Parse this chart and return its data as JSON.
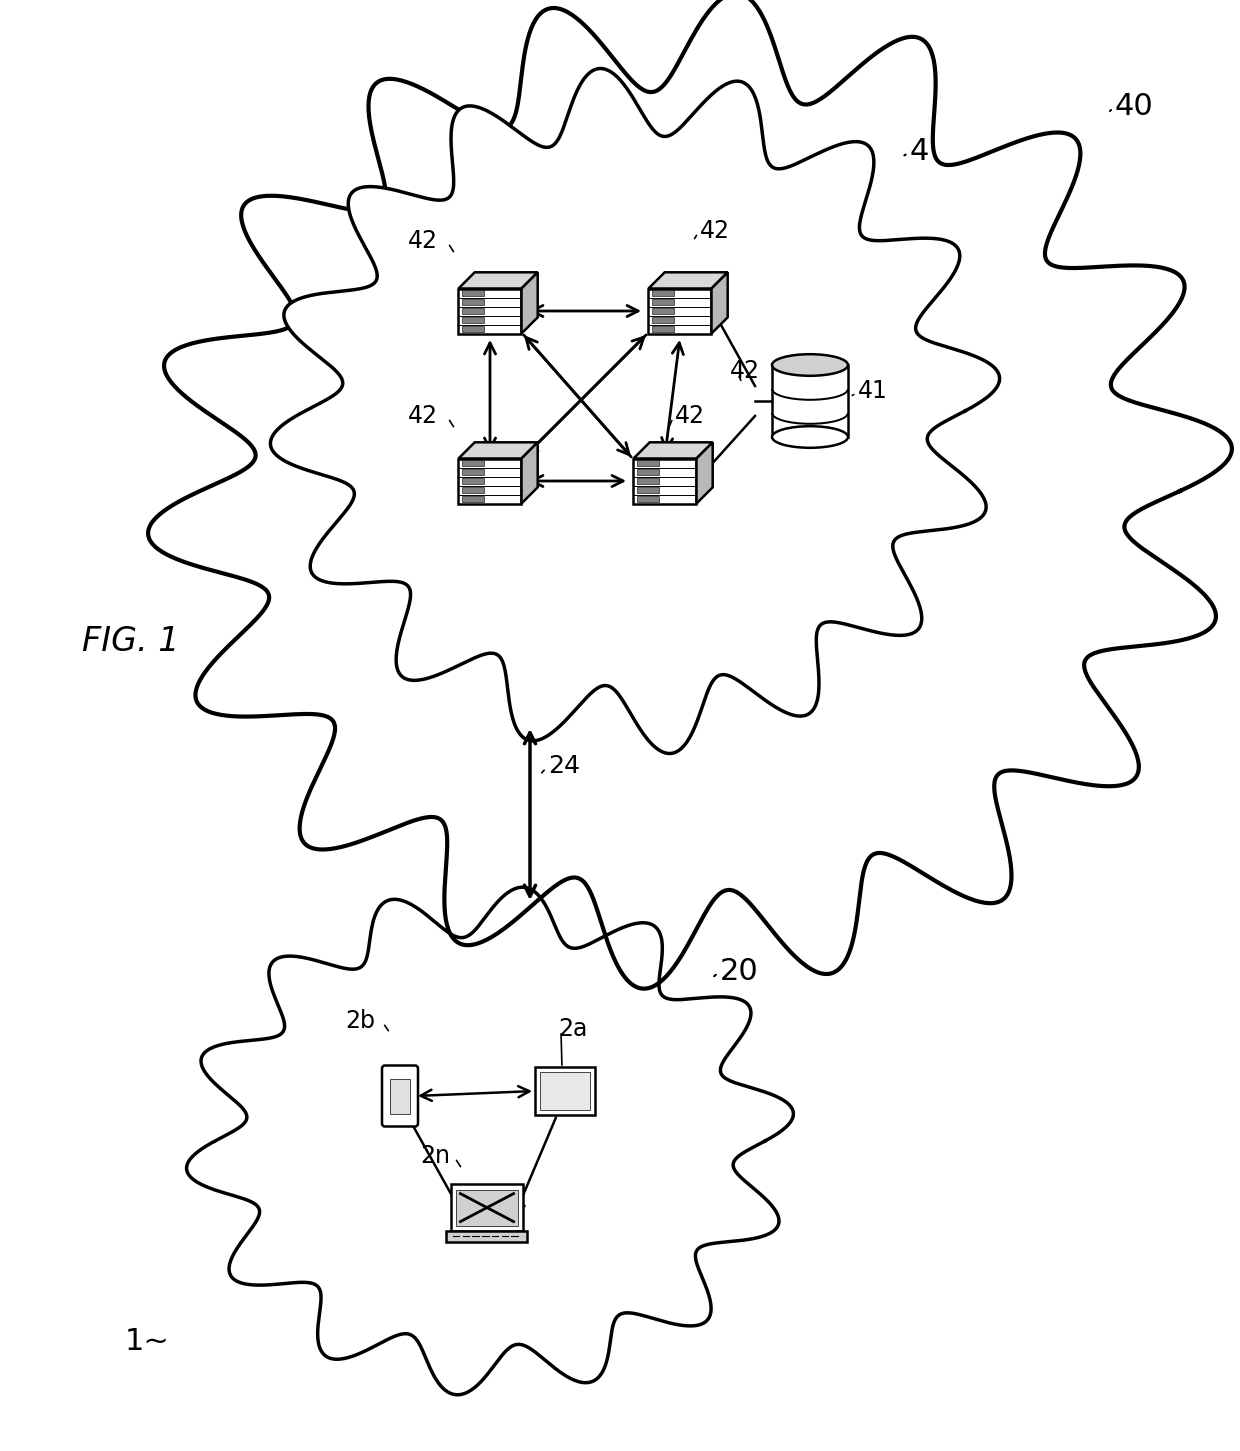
{
  "title": "FIG. 1",
  "bg_color": "#ffffff",
  "line_color": "#000000",
  "fig_label": "FIG. 1",
  "fig_num_label": "1~",
  "outer_cloud_label": "40",
  "inner_cloud_label": "4",
  "server_label": "42",
  "db_label": "41",
  "link_label": "24",
  "client_cloud_label": "20",
  "client_labels": [
    "2b",
    "2a",
    "2n"
  ]
}
